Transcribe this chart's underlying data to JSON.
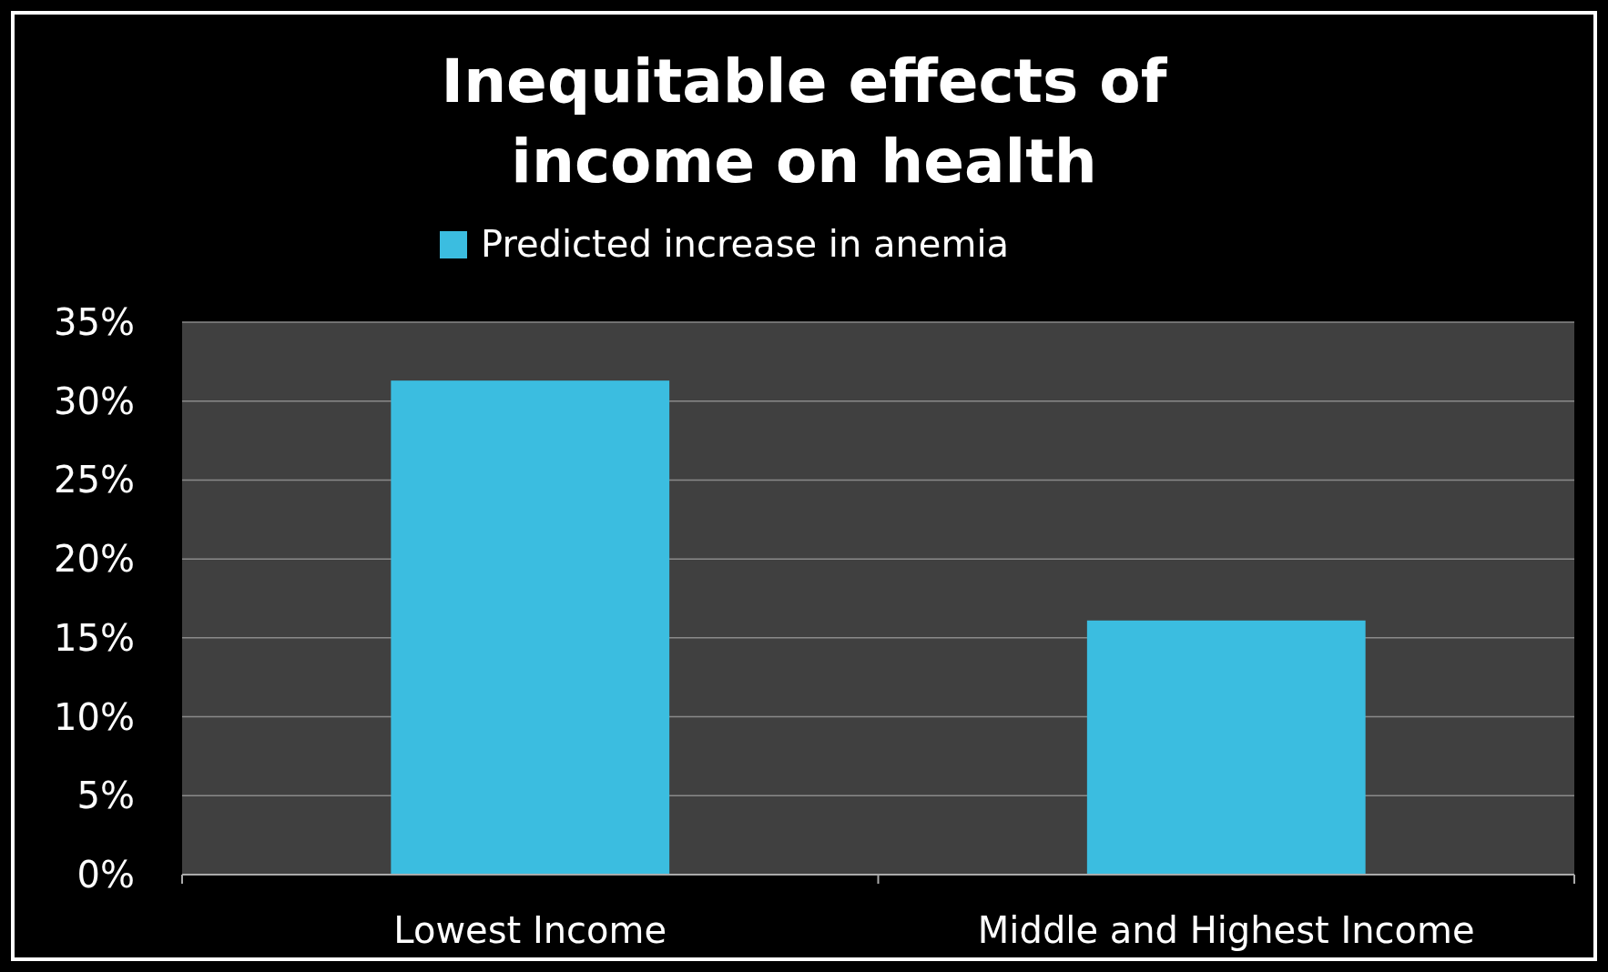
{
  "chart_data": {
    "type": "bar",
    "title": "Inequitable effects of\nincome on health",
    "categories": [
      "Lowest Income",
      "Middle and Highest Income"
    ],
    "series": [
      {
        "name": "Predicted increase in anemia",
        "color": "#3bbde0",
        "values": [
          31.3,
          16.1
        ]
      }
    ],
    "ylim": [
      0,
      35
    ],
    "yticks": [
      {
        "value": 0,
        "label": "0%"
      },
      {
        "value": 5,
        "label": "5%"
      },
      {
        "value": 10,
        "label": "10%"
      },
      {
        "value": 15,
        "label": "15%"
      },
      {
        "value": 20,
        "label": "20%"
      },
      {
        "value": 25,
        "label": "25%"
      },
      {
        "value": 30,
        "label": "30%"
      },
      {
        "value": 35,
        "label": "35%"
      }
    ],
    "grid": "y",
    "legend": "top"
  }
}
